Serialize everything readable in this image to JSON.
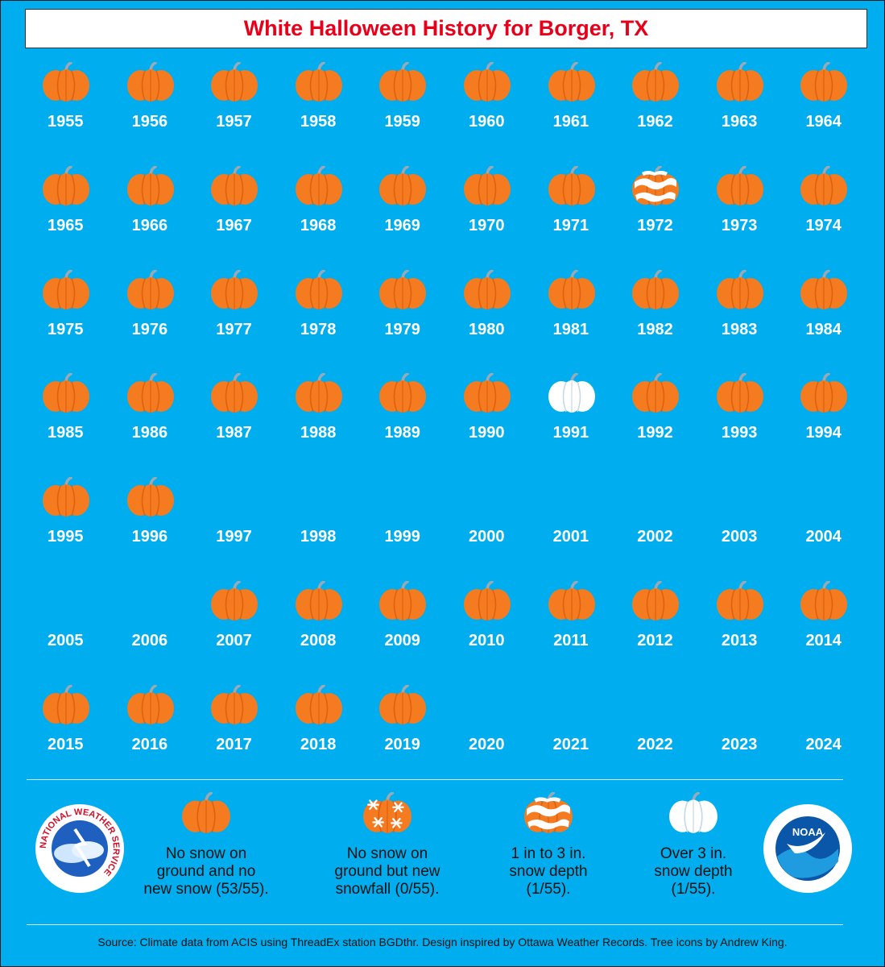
{
  "title": "White Halloween History for Borger, TX",
  "years": [
    {
      "year": "1955",
      "category": "none"
    },
    {
      "year": "1956",
      "category": "none"
    },
    {
      "year": "1957",
      "category": "none"
    },
    {
      "year": "1958",
      "category": "none"
    },
    {
      "year": "1959",
      "category": "none"
    },
    {
      "year": "1960",
      "category": "none"
    },
    {
      "year": "1961",
      "category": "none"
    },
    {
      "year": "1962",
      "category": "none"
    },
    {
      "year": "1963",
      "category": "none"
    },
    {
      "year": "1964",
      "category": "none"
    },
    {
      "year": "1965",
      "category": "none"
    },
    {
      "year": "1966",
      "category": "none"
    },
    {
      "year": "1967",
      "category": "none"
    },
    {
      "year": "1968",
      "category": "none"
    },
    {
      "year": "1969",
      "category": "none"
    },
    {
      "year": "1970",
      "category": "none"
    },
    {
      "year": "1971",
      "category": "none"
    },
    {
      "year": "1972",
      "category": "depth_1_3"
    },
    {
      "year": "1973",
      "category": "none"
    },
    {
      "year": "1974",
      "category": "none"
    },
    {
      "year": "1975",
      "category": "none"
    },
    {
      "year": "1976",
      "category": "none"
    },
    {
      "year": "1977",
      "category": "none"
    },
    {
      "year": "1978",
      "category": "none"
    },
    {
      "year": "1979",
      "category": "none"
    },
    {
      "year": "1980",
      "category": "none"
    },
    {
      "year": "1981",
      "category": "none"
    },
    {
      "year": "1982",
      "category": "none"
    },
    {
      "year": "1983",
      "category": "none"
    },
    {
      "year": "1984",
      "category": "none"
    },
    {
      "year": "1985",
      "category": "none"
    },
    {
      "year": "1986",
      "category": "none"
    },
    {
      "year": "1987",
      "category": "none"
    },
    {
      "year": "1988",
      "category": "none"
    },
    {
      "year": "1989",
      "category": "none"
    },
    {
      "year": "1990",
      "category": "none"
    },
    {
      "year": "1991",
      "category": "depth_over_3"
    },
    {
      "year": "1992",
      "category": "none"
    },
    {
      "year": "1993",
      "category": "none"
    },
    {
      "year": "1994",
      "category": "none"
    },
    {
      "year": "1995",
      "category": "none"
    },
    {
      "year": "1996",
      "category": "none"
    },
    {
      "year": "1997",
      "category": "missing"
    },
    {
      "year": "1998",
      "category": "missing"
    },
    {
      "year": "1999",
      "category": "missing"
    },
    {
      "year": "2000",
      "category": "missing"
    },
    {
      "year": "2001",
      "category": "missing"
    },
    {
      "year": "2002",
      "category": "missing"
    },
    {
      "year": "2003",
      "category": "missing"
    },
    {
      "year": "2004",
      "category": "missing"
    },
    {
      "year": "2005",
      "category": "missing"
    },
    {
      "year": "2006",
      "category": "missing"
    },
    {
      "year": "2007",
      "category": "none"
    },
    {
      "year": "2008",
      "category": "none"
    },
    {
      "year": "2009",
      "category": "none"
    },
    {
      "year": "2010",
      "category": "none"
    },
    {
      "year": "2011",
      "category": "none"
    },
    {
      "year": "2012",
      "category": "none"
    },
    {
      "year": "2013",
      "category": "none"
    },
    {
      "year": "2014",
      "category": "none"
    },
    {
      "year": "2015",
      "category": "none"
    },
    {
      "year": "2016",
      "category": "none"
    },
    {
      "year": "2017",
      "category": "none"
    },
    {
      "year": "2018",
      "category": "none"
    },
    {
      "year": "2019",
      "category": "none"
    },
    {
      "year": "2020",
      "category": "missing"
    },
    {
      "year": "2021",
      "category": "missing"
    },
    {
      "year": "2022",
      "category": "missing"
    },
    {
      "year": "2023",
      "category": "missing"
    },
    {
      "year": "2024",
      "category": "missing"
    }
  ],
  "legend": [
    {
      "icon": "pumpkin-plain-icon",
      "label": "No snow on\nground and no\nnew snow (53/55)."
    },
    {
      "icon": "pumpkin-snowflake-icon",
      "label": "No snow on\nground but new\nsnowfall (0/55)."
    },
    {
      "icon": "pumpkin-snow-band-icon",
      "label": "1 in to 3 in.\nsnow depth\n(1/55)."
    },
    {
      "icon": "pumpkin-white-icon",
      "label": "Over 3 in.\nsnow depth\n(1/55)."
    }
  ],
  "logos": {
    "nws": "NATIONAL WEATHER SERVICE",
    "noaa": "NOAA"
  },
  "source": "Source: Climate data from ACIS using ThreadEx station BGDthr. Design inspired by Ottawa Weather Records. Tree icons by Andrew King.",
  "colors": {
    "background": "#00aeef",
    "title": "#e8001a",
    "pumpkin": "#f47b20",
    "pumpkin_dark": "#e0600e",
    "stem": "#9aa9b5",
    "snow": "#ffffff"
  }
}
